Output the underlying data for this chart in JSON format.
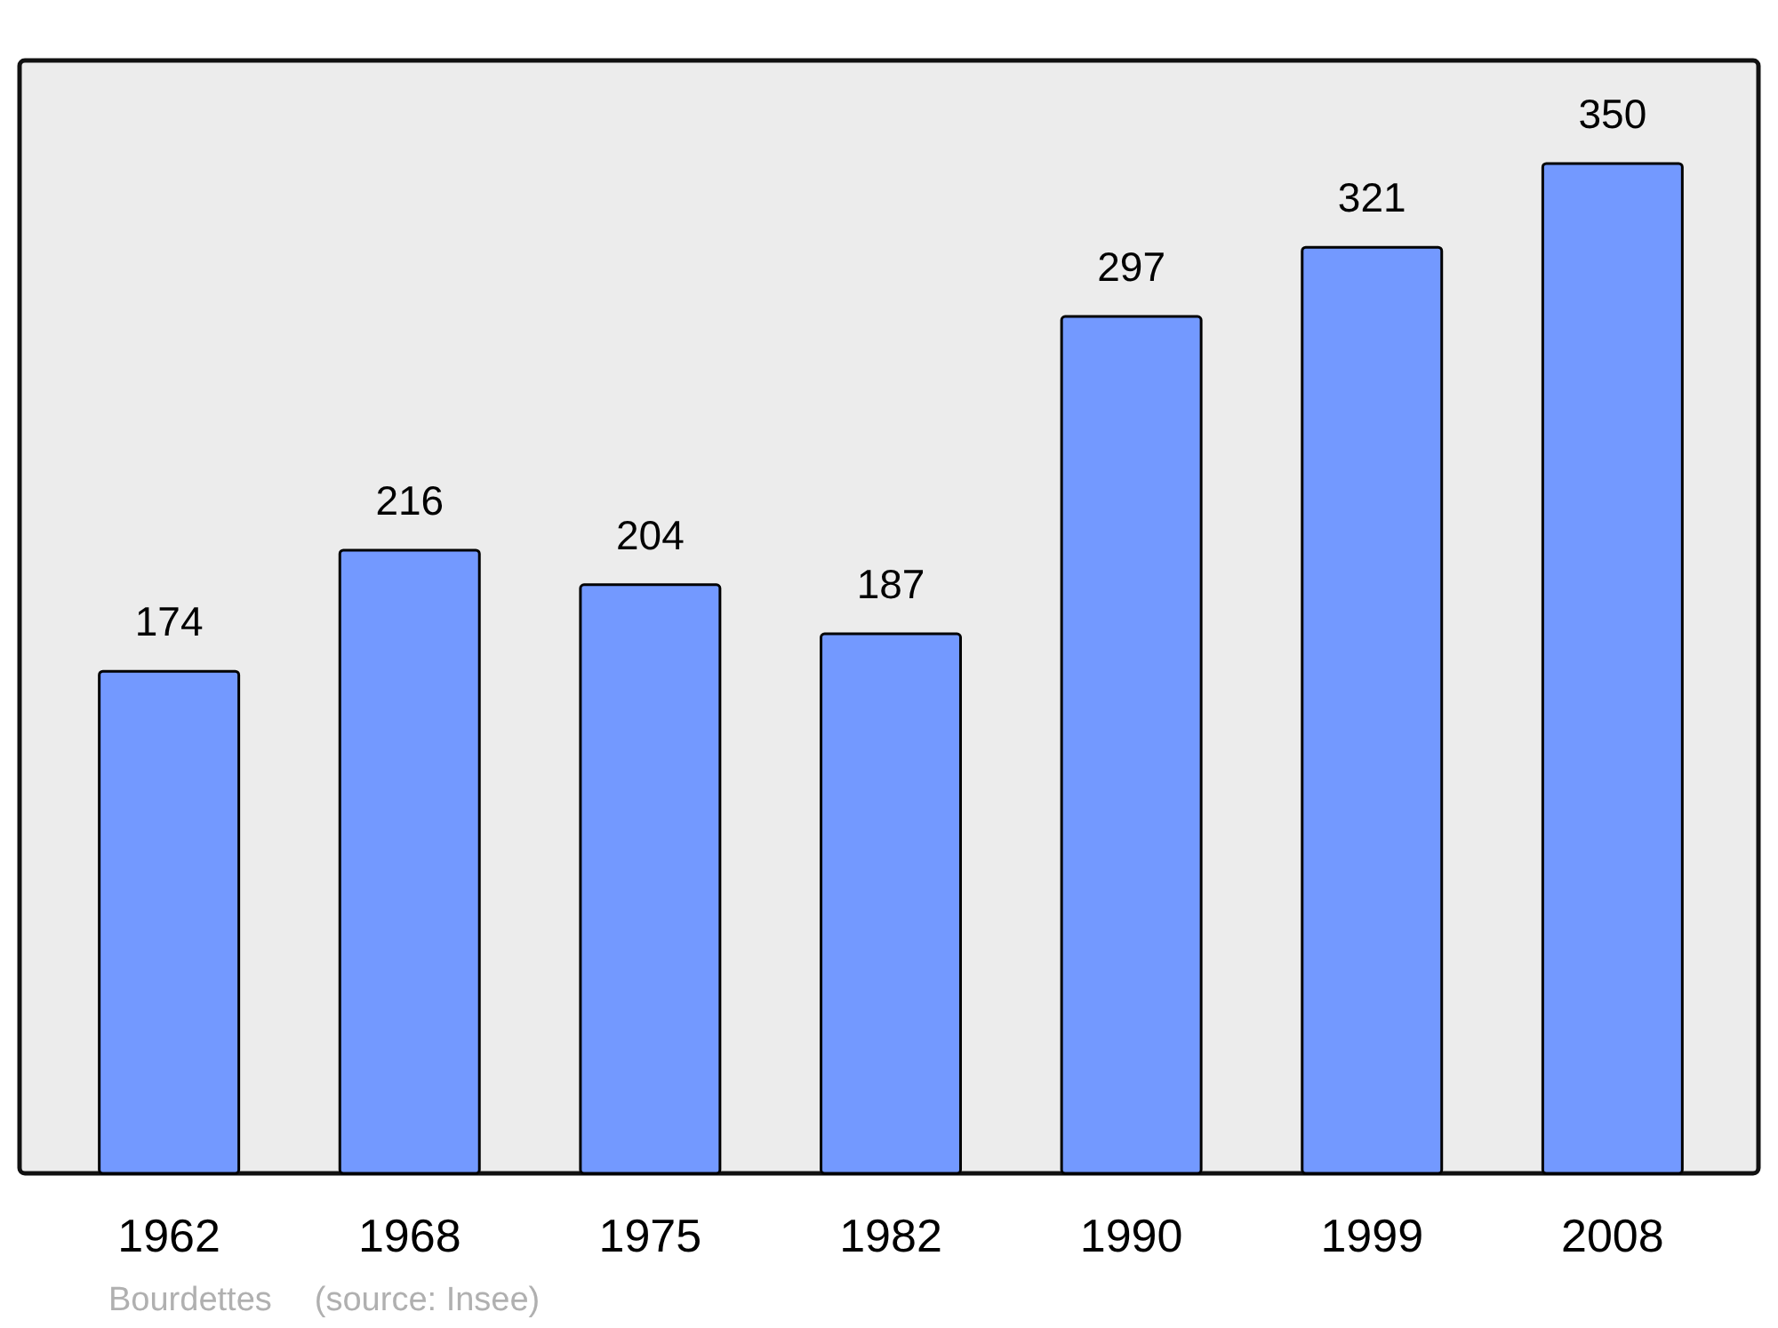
{
  "chart_data": {
    "type": "bar",
    "categories": [
      "1962",
      "1968",
      "1975",
      "1982",
      "1990",
      "1999",
      "2008"
    ],
    "values": [
      174,
      216,
      204,
      187,
      297,
      321,
      350
    ],
    "color": "#7399ff",
    "data_labels": true,
    "annotations": [
      "Bourdettes",
      "(source: Insee)"
    ]
  }
}
